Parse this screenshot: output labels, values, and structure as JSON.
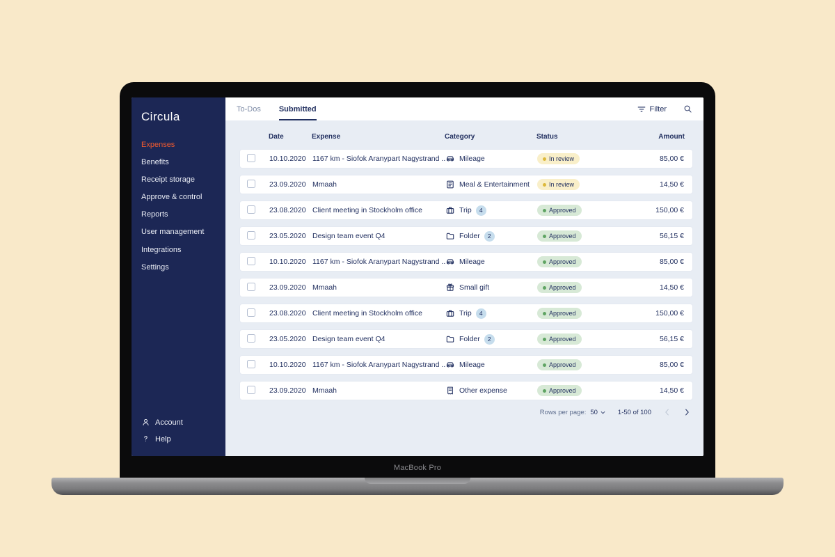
{
  "device": {
    "label": "MacBook Pro"
  },
  "sidebar": {
    "logo": "Circula",
    "items": [
      {
        "label": "Expenses",
        "active": true
      },
      {
        "label": "Benefits",
        "active": false
      },
      {
        "label": "Receipt storage",
        "active": false
      },
      {
        "label": "Approve & control",
        "active": false
      },
      {
        "label": "Reports",
        "active": false
      },
      {
        "label": "User management",
        "active": false
      },
      {
        "label": "Integrations",
        "active": false
      },
      {
        "label": "Settings",
        "active": false
      }
    ],
    "footer": [
      {
        "label": "Account",
        "icon": "account-icon"
      },
      {
        "label": "Help",
        "icon": "help-icon"
      }
    ]
  },
  "topbar": {
    "tabs": [
      {
        "label": "To-Dos",
        "active": false
      },
      {
        "label": "Submitted",
        "active": true
      }
    ],
    "filter_label": "Filter"
  },
  "table": {
    "columns": [
      "Date",
      "Expense",
      "Category",
      "Status",
      "Amount"
    ],
    "rows": [
      {
        "date": "10.10.2020",
        "expense": "1167 km - Siofok Aranypart Nagystrand ...",
        "category": "Mileage",
        "icon": "car-icon",
        "count": null,
        "status": "In review",
        "status_type": "review",
        "amount": "85,00 €"
      },
      {
        "date": "23.09.2020",
        "expense": "Mmaah",
        "category": "Meal & Entertainment",
        "icon": "meal-icon",
        "count": null,
        "status": "In review",
        "status_type": "review",
        "amount": "14,50 €"
      },
      {
        "date": "23.08.2020",
        "expense": "Client meeting in Stockholm office",
        "category": "Trip",
        "icon": "trip-icon",
        "count": "4",
        "status": "Approved",
        "status_type": "approved",
        "amount": "150,00 €"
      },
      {
        "date": "23.05.2020",
        "expense": "Design team event Q4",
        "category": "Folder",
        "icon": "folder-icon",
        "count": "2",
        "status": "Approved",
        "status_type": "approved",
        "amount": "56,15 €"
      },
      {
        "date": "10.10.2020",
        "expense": "1167 km - Siofok Aranypart Nagystrand ...",
        "category": "Mileage",
        "icon": "car-icon",
        "count": null,
        "status": "Approved",
        "status_type": "approved",
        "amount": "85,00 €"
      },
      {
        "date": "23.09.2020",
        "expense": "Mmaah",
        "category": "Small gift",
        "icon": "gift-icon",
        "count": null,
        "status": "Approved",
        "status_type": "approved",
        "amount": "14,50 €"
      },
      {
        "date": "23.08.2020",
        "expense": "Client meeting in Stockholm office",
        "category": "Trip",
        "icon": "trip-icon",
        "count": "4",
        "status": "Approved",
        "status_type": "approved",
        "amount": "150,00 €"
      },
      {
        "date": "23.05.2020",
        "expense": "Design team event Q4",
        "category": "Folder",
        "icon": "folder-icon",
        "count": "2",
        "status": "Approved",
        "status_type": "approved",
        "amount": "56,15 €"
      },
      {
        "date": "10.10.2020",
        "expense": "1167 km - Siofok Aranypart Nagystrand ...",
        "category": "Mileage",
        "icon": "car-icon",
        "count": null,
        "status": "Approved",
        "status_type": "approved",
        "amount": "85,00 €"
      },
      {
        "date": "23.09.2020",
        "expense": "Mmaah",
        "category": "Other expense",
        "icon": "receipt-icon",
        "count": null,
        "status": "Approved",
        "status_type": "approved",
        "amount": "14,50 €"
      }
    ]
  },
  "pagination": {
    "rows_per_page_label": "Rows per page:",
    "rows_per_page_value": "50",
    "range": "1-50 of 100"
  },
  "colors": {
    "sidebar_bg": "#1c2755",
    "accent": "#ef5a2f",
    "main_bg": "#e8edf4",
    "navy": "#223060",
    "status_review_bg": "#f9efc9",
    "status_review_dot": "#ddb93c",
    "status_approved_bg": "#d7e9d6",
    "status_approved_dot": "#5fa463",
    "count_badge_bg": "#c6dded",
    "page_bg": "#f9e9c9"
  }
}
